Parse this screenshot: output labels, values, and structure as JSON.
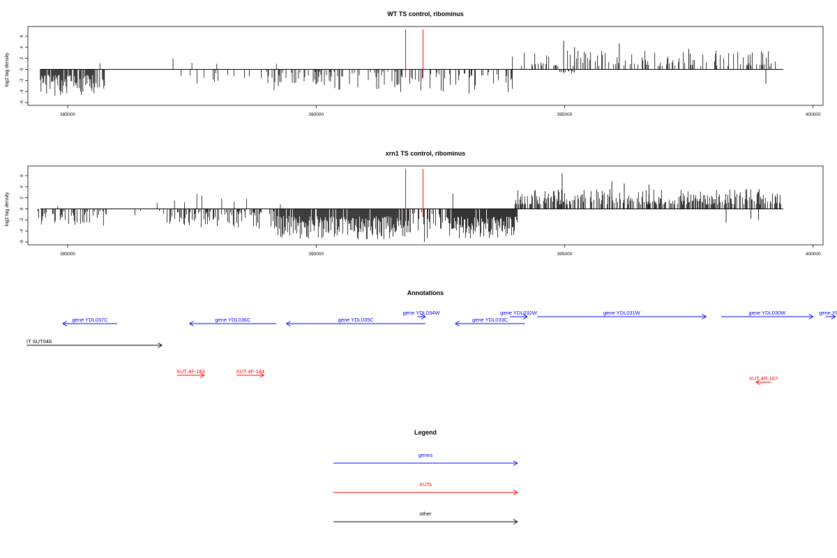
{
  "colors": {
    "gene": "#0000ff",
    "xut": "#ff0000",
    "other": "#000000",
    "marker": "#ff0000"
  },
  "chart_data": [
    {
      "type": "bar",
      "title": "WT TS control, ribominus",
      "ylabel": "log2 tag density",
      "xlim": [
        384200,
        400200
      ],
      "ylim": [
        -6,
        7
      ],
      "yticks": [
        6,
        4,
        2,
        0,
        -2,
        -4,
        -6
      ],
      "xticks": [
        385000,
        390000,
        395000,
        400000
      ],
      "markers": [
        391800,
        392150
      ],
      "segments": [
        {
          "x0": 384450,
          "x1": 385750,
          "density": 0.75,
          "min": -4.8,
          "max": -1.0,
          "seed": 11,
          "ups": [
            {
              "x": 385650,
              "y": 1.1
            }
          ]
        },
        {
          "x0": 387000,
          "x1": 389000,
          "density": 0.09,
          "min": -2.7,
          "max": -0.4,
          "seed": 21,
          "ups": [
            {
              "x": 387120,
              "y": 2.0
            },
            {
              "x": 387500,
              "y": 1.2
            },
            {
              "x": 388000,
              "y": 1.0
            }
          ]
        },
        {
          "x0": 389000,
          "x1": 391700,
          "density": 0.33,
          "min": -3.8,
          "max": -0.4,
          "seed": 31,
          "ups": [
            {
              "x": 389200,
              "y": 1.0
            }
          ]
        },
        {
          "x0": 391700,
          "x1": 394000,
          "density": 0.28,
          "min": -4.7,
          "max": -0.4,
          "seed": 41,
          "ups": []
        },
        {
          "x0": 393950,
          "x1": 399400,
          "density": 0.3,
          "min": 0.6,
          "max": 3.4,
          "seed": 51,
          "ups": [],
          "peaks": [
            {
              "x": 394980,
              "y": 5.2
            },
            {
              "x": 395200,
              "y": 4.0
            },
            {
              "x": 396100,
              "y": 4.7
            },
            {
              "x": 397500,
              "y": 3.7
            }
          ]
        },
        {
          "x0": 394900,
          "x1": 395200,
          "density": 0.4,
          "min": -0.8,
          "max": -0.2,
          "seed": 61,
          "ups": [],
          "downs": [
            {
              "x": 399050,
              "y": -2.6
            }
          ]
        }
      ]
    },
    {
      "type": "bar",
      "title": "xrn1 TS control, ribominus",
      "ylabel": "log2 tag density",
      "xlim": [
        384200,
        400200
      ],
      "ylim": [
        -6,
        7
      ],
      "yticks": [
        6,
        4,
        2,
        0,
        -2,
        -4,
        -6
      ],
      "xticks": [
        385000,
        390000,
        395000,
        400000
      ],
      "markers": [
        391800,
        392150
      ],
      "segments": [
        {
          "x0": 384400,
          "x1": 385800,
          "density": 0.38,
          "min": -3.0,
          "max": -0.4,
          "seed": 12,
          "ups": [
            {
              "x": 384800,
              "y": 0.5
            }
          ]
        },
        {
          "x0": 386300,
          "x1": 387000,
          "density": 0.08,
          "min": -1.4,
          "max": -0.3,
          "seed": 22,
          "ups": [
            {
              "x": 386800,
              "y": 1.1
            }
          ]
        },
        {
          "x0": 387000,
          "x1": 389200,
          "density": 0.45,
          "min": -3.6,
          "max": -0.4,
          "seed": 32,
          "ups": [
            {
              "x": 387150,
              "y": 1.5
            },
            {
              "x": 387350,
              "y": 1.2
            },
            {
              "x": 387600,
              "y": 2.7
            },
            {
              "x": 387700,
              "y": 2.4
            },
            {
              "x": 388100,
              "y": 1.9
            },
            {
              "x": 388350,
              "y": 1.3
            },
            {
              "x": 388600,
              "y": 1.8
            }
          ]
        },
        {
          "x0": 389200,
          "x1": 391800,
          "density": 0.95,
          "min": -5.5,
          "max": -1.3,
          "seed": 42,
          "ups": [
            {
              "x": 389280,
              "y": 0.8
            }
          ]
        },
        {
          "x0": 391800,
          "x1": 392600,
          "density": 0.45,
          "min": -6.0,
          "max": -0.6,
          "seed": 52,
          "ups": []
        },
        {
          "x0": 392600,
          "x1": 394050,
          "density": 0.95,
          "min": -5.4,
          "max": -1.4,
          "seed": 62,
          "ups": [
            {
              "x": 392750,
              "y": 2.8
            }
          ]
        },
        {
          "x0": 394000,
          "x1": 399350,
          "density": 0.62,
          "min": 0.8,
          "max": 3.6,
          "seed": 72,
          "ups": [],
          "peaks": [
            {
              "x": 394950,
              "y": 6.4
            },
            {
              "x": 395950,
              "y": 5.0
            },
            {
              "x": 396200,
              "y": 4.6
            },
            {
              "x": 396700,
              "y": 4.4
            }
          ],
          "downs": [
            {
              "x": 398250,
              "y": -2.5
            },
            {
              "x": 398750,
              "y": -1.8
            },
            {
              "x": 398900,
              "y": -2.0
            }
          ]
        }
      ]
    }
  ],
  "annotations": {
    "title": "Annotations",
    "features": [
      {
        "label": "gene YDL037C",
        "type": "gene",
        "x0": 384900,
        "x1": 386000,
        "dir": "left",
        "row": 2
      },
      {
        "label": "gene YDL036C",
        "type": "gene",
        "x0": 387450,
        "x1": 389200,
        "dir": "left",
        "row": 2
      },
      {
        "label": "gene YDL035C",
        "type": "gene",
        "x0": 389400,
        "x1": 392200,
        "dir": "left",
        "row": 2
      },
      {
        "label": "gene YDL034W",
        "type": "gene",
        "x0": 392050,
        "x1": 392200,
        "dir": "right",
        "row": 1
      },
      {
        "label": "gene YDL033C",
        "type": "gene",
        "x0": 392800,
        "x1": 394200,
        "dir": "left",
        "row": 2
      },
      {
        "label": "gene YDL032W",
        "type": "gene",
        "x0": 393900,
        "x1": 394250,
        "dir": "right",
        "row": 1
      },
      {
        "label": "gene YDL031W",
        "type": "gene",
        "x0": 394450,
        "x1": 397850,
        "dir": "right",
        "row": 1
      },
      {
        "label": "gene YDL030W",
        "type": "gene",
        "x0": 398150,
        "x1": 400000,
        "dir": "right",
        "row": 1
      },
      {
        "label": "gene YDL",
        "type": "gene",
        "x0": 400250,
        "x1": 401200,
        "dir": "right",
        "row": 1,
        "clip": true
      },
      {
        "label": "IT SUT048",
        "type": "other",
        "x0": 383500,
        "x1": 386900,
        "dir": "right",
        "row": 3,
        "label_align": "start"
      },
      {
        "label": "XUT 4F-183",
        "type": "xut",
        "x0": 387200,
        "x1": 387750,
        "dir": "right",
        "row": 4
      },
      {
        "label": "XUT 4F-184",
        "type": "xut",
        "x0": 388400,
        "x1": 388950,
        "dir": "right",
        "row": 4
      },
      {
        "label": "XUT 4R-167",
        "type": "xut",
        "x0": 398850,
        "x1": 399150,
        "dir": "left",
        "row": 5
      }
    ]
  },
  "legend": {
    "title": "Legend",
    "items": [
      {
        "label": "genes",
        "type": "gene"
      },
      {
        "label": "XUTs",
        "type": "xut"
      },
      {
        "label": "other",
        "type": "other"
      }
    ]
  }
}
